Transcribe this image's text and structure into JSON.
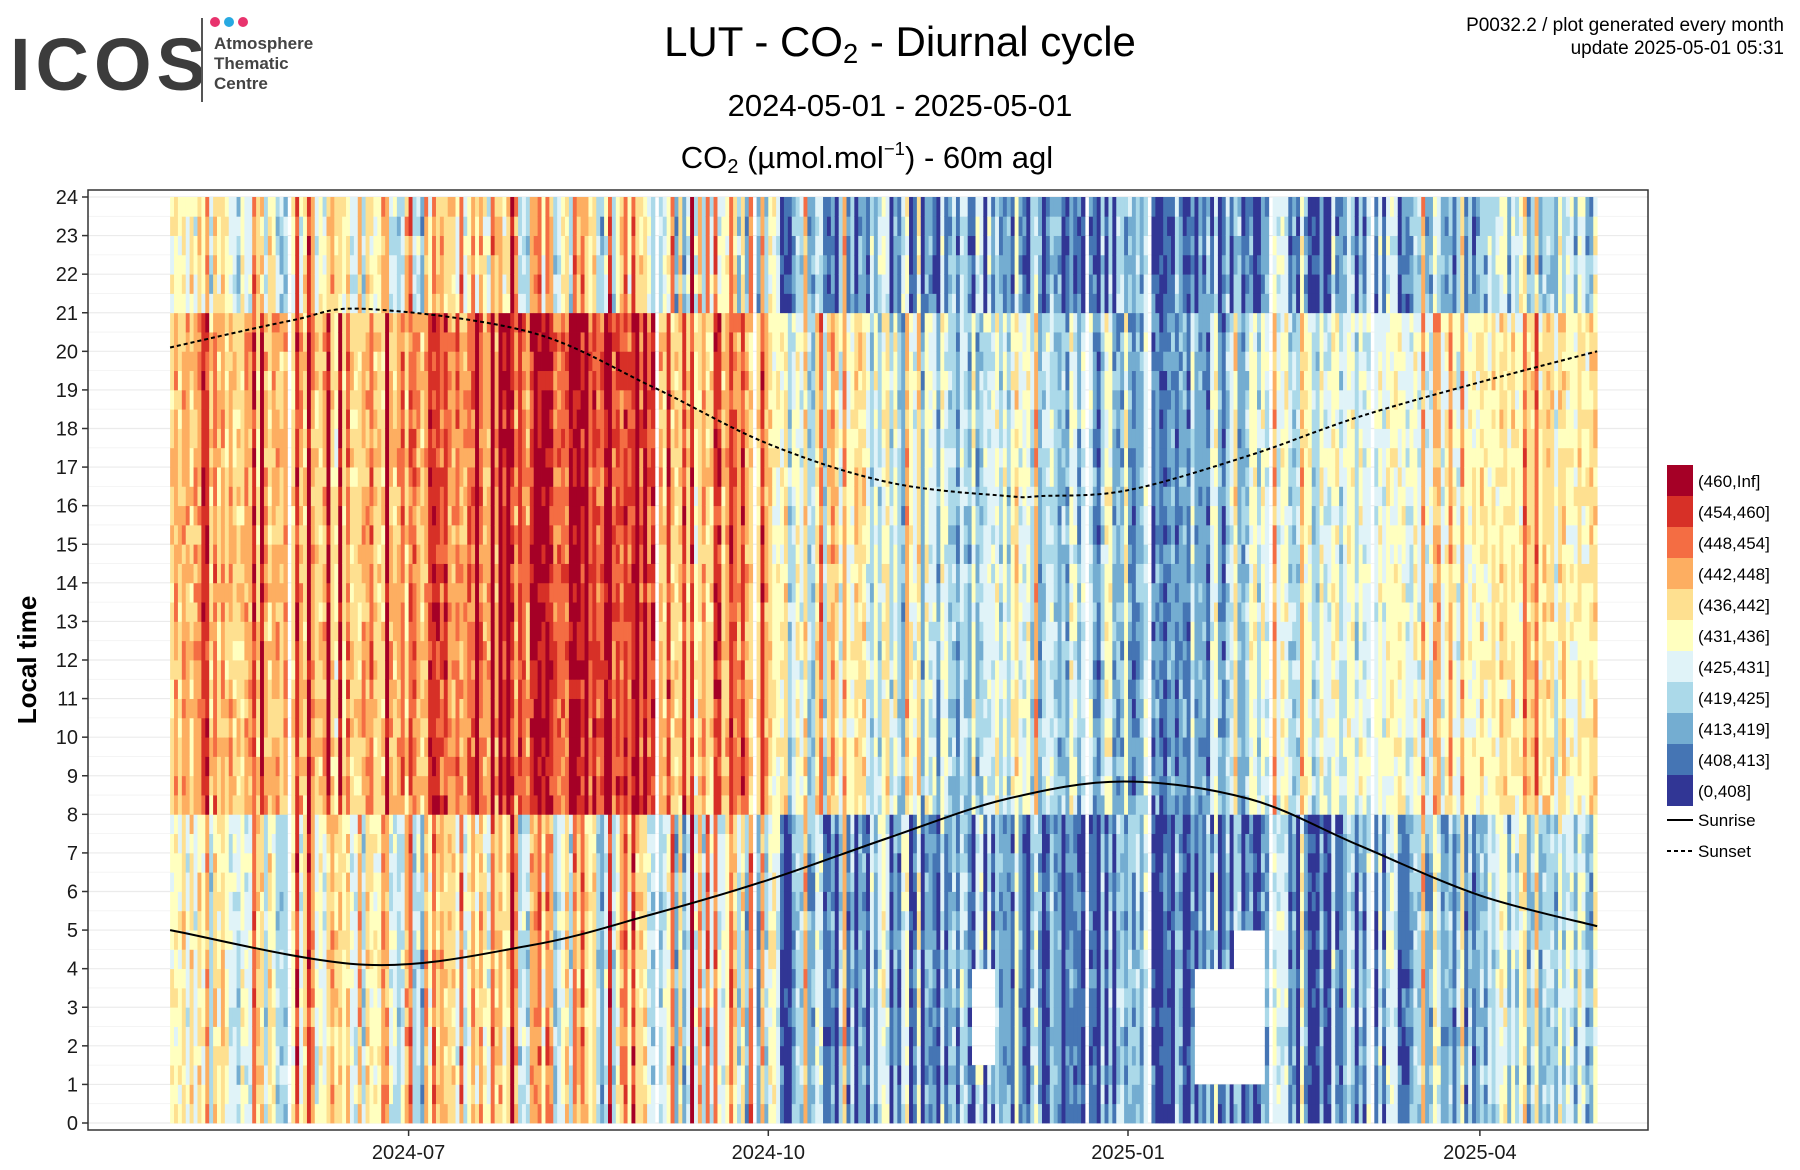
{
  "header": {
    "logo_text": "ICOS",
    "logo_subtitle": [
      "Atmosphere",
      "Thematic",
      "Centre"
    ],
    "logo_dot_colors": [
      "#e8336d",
      "#27a9e1",
      "#e8336d"
    ],
    "title_prefix": "LUT - CO",
    "title_sub": "2",
    "title_suffix": " - Diurnal cycle",
    "date_range": "2024-05-01 - 2025-05-01",
    "var_prefix": "CO",
    "var_sub": "2",
    "var_unit_open": " (µmol.mol",
    "var_unit_sup": "−1",
    "var_suffix": ") - 60m agl",
    "meta_line1": "P0032.2 / plot generated every month",
    "meta_line2": "update  2025-05-01 05:31"
  },
  "chart_data": {
    "type": "heatmap",
    "ylabel": "Local time",
    "xlabel": "",
    "x_range": [
      "2024-05-01",
      "2025-05-01"
    ],
    "x_ticks": [
      "2024-07",
      "2024-10",
      "2025-01",
      "2025-04"
    ],
    "y_range": [
      0,
      24
    ],
    "y_ticks": [
      0,
      1,
      2,
      3,
      4,
      5,
      6,
      7,
      8,
      9,
      10,
      11,
      12,
      13,
      14,
      15,
      16,
      17,
      18,
      19,
      20,
      21,
      22,
      23,
      24
    ],
    "grid": true,
    "legend_position": "right",
    "legend": [
      {
        "label": "(460,Inf]",
        "color": "#a50026"
      },
      {
        "label": "(454,460]",
        "color": "#d73027"
      },
      {
        "label": "(448,454]",
        "color": "#f46d43"
      },
      {
        "label": "(442,448]",
        "color": "#fdae61"
      },
      {
        "label": "(436,442]",
        "color": "#fee090"
      },
      {
        "label": "(431,436]",
        "color": "#ffffbf"
      },
      {
        "label": "(425,431]",
        "color": "#e0f3f8"
      },
      {
        "label": "(419,425]",
        "color": "#abd9e9"
      },
      {
        "label": "(413,419]",
        "color": "#74add1"
      },
      {
        "label": "(408,413]",
        "color": "#4575b4"
      },
      {
        "label": "(0,408]",
        "color": "#313695"
      }
    ],
    "lines": [
      {
        "name": "Sunrise",
        "style": "solid",
        "x": [
          "2024-05-01",
          "2024-06-20",
          "2024-08-01",
          "2024-09-01",
          "2024-10-01",
          "2024-11-01",
          "2024-12-01",
          "2024-12-31",
          "2025-02-01",
          "2025-03-01",
          "2025-04-01",
          "2025-05-01"
        ],
        "y": [
          5.0,
          4.1,
          4.6,
          5.4,
          6.3,
          7.4,
          8.4,
          8.85,
          8.4,
          7.2,
          5.9,
          5.1
        ]
      },
      {
        "name": "Sunset",
        "style": "dashed",
        "x": [
          "2024-05-01",
          "2024-06-01",
          "2024-06-20",
          "2024-08-01",
          "2024-09-01",
          "2024-10-01",
          "2024-11-01",
          "2024-12-01",
          "2024-12-10",
          "2025-01-01",
          "2025-02-01",
          "2025-03-01",
          "2025-04-01",
          "2025-05-01"
        ],
        "y": [
          20.1,
          20.8,
          21.1,
          20.5,
          19.1,
          17.6,
          16.6,
          16.25,
          16.25,
          16.4,
          17.3,
          18.3,
          19.2,
          20.0
        ]
      }
    ],
    "periods": [
      {
        "start": "2024-05-01",
        "end": "2024-06-01",
        "day_bins": [
          6,
          7
        ],
        "night_bins": [
          3,
          4,
          5,
          6
        ]
      },
      {
        "start": "2024-06-01",
        "end": "2024-07-01",
        "day_bins": [
          6,
          7,
          8
        ],
        "night_bins": [
          3,
          4,
          5,
          6,
          7
        ]
      },
      {
        "start": "2024-07-01",
        "end": "2024-08-01",
        "day_bins": [
          7,
          8,
          9
        ],
        "night_bins": [
          3,
          4,
          5,
          6,
          7,
          8
        ]
      },
      {
        "start": "2024-08-01",
        "end": "2024-09-01",
        "day_bins": [
          8,
          9,
          10
        ],
        "night_bins": [
          3,
          4,
          5,
          6,
          7,
          8,
          9
        ]
      },
      {
        "start": "2024-09-01",
        "end": "2024-10-01",
        "day_bins": [
          6,
          7,
          8,
          9
        ],
        "night_bins": [
          2,
          3,
          4,
          5,
          6,
          7,
          8
        ]
      },
      {
        "start": "2024-10-01",
        "end": "2024-11-01",
        "day_bins": [
          3,
          4,
          5,
          6
        ],
        "night_bins": [
          0,
          1,
          2,
          3,
          4,
          5
        ]
      },
      {
        "start": "2024-11-01",
        "end": "2024-12-01",
        "day_bins": [
          2,
          3,
          4,
          5
        ],
        "night_bins": [
          0,
          1,
          2,
          3,
          4
        ]
      },
      {
        "start": "2024-12-01",
        "end": "2025-01-01",
        "day_bins": [
          2,
          3,
          4,
          5
        ],
        "night_bins": [
          0,
          1,
          2,
          3
        ]
      },
      {
        "start": "2025-01-01",
        "end": "2025-02-01",
        "day_bins": [
          1,
          2,
          3,
          4
        ],
        "night_bins": [
          0,
          1,
          2,
          3
        ]
      },
      {
        "start": "2025-02-01",
        "end": "2025-03-01",
        "day_bins": [
          3,
          4,
          5
        ],
        "night_bins": [
          0,
          1,
          2,
          3,
          4
        ]
      },
      {
        "start": "2025-03-01",
        "end": "2025-04-01",
        "day_bins": [
          4,
          5
        ],
        "night_bins": [
          1,
          2,
          3,
          4
        ]
      },
      {
        "start": "2025-04-01",
        "end": "2025-05-01",
        "day_bins": [
          5,
          6
        ],
        "night_bins": [
          2,
          3,
          4,
          5
        ]
      }
    ],
    "missing_blocks": [
      {
        "start": "2025-01-18",
        "end": "2025-01-28",
        "hours": [
          0.9,
          4.0
        ]
      },
      {
        "start": "2025-01-28",
        "end": "2025-02-05",
        "hours": [
          0.9,
          5.0
        ]
      },
      {
        "start": "2024-11-22",
        "end": "2024-11-28",
        "hours": [
          1.5,
          4.0
        ]
      }
    ]
  }
}
